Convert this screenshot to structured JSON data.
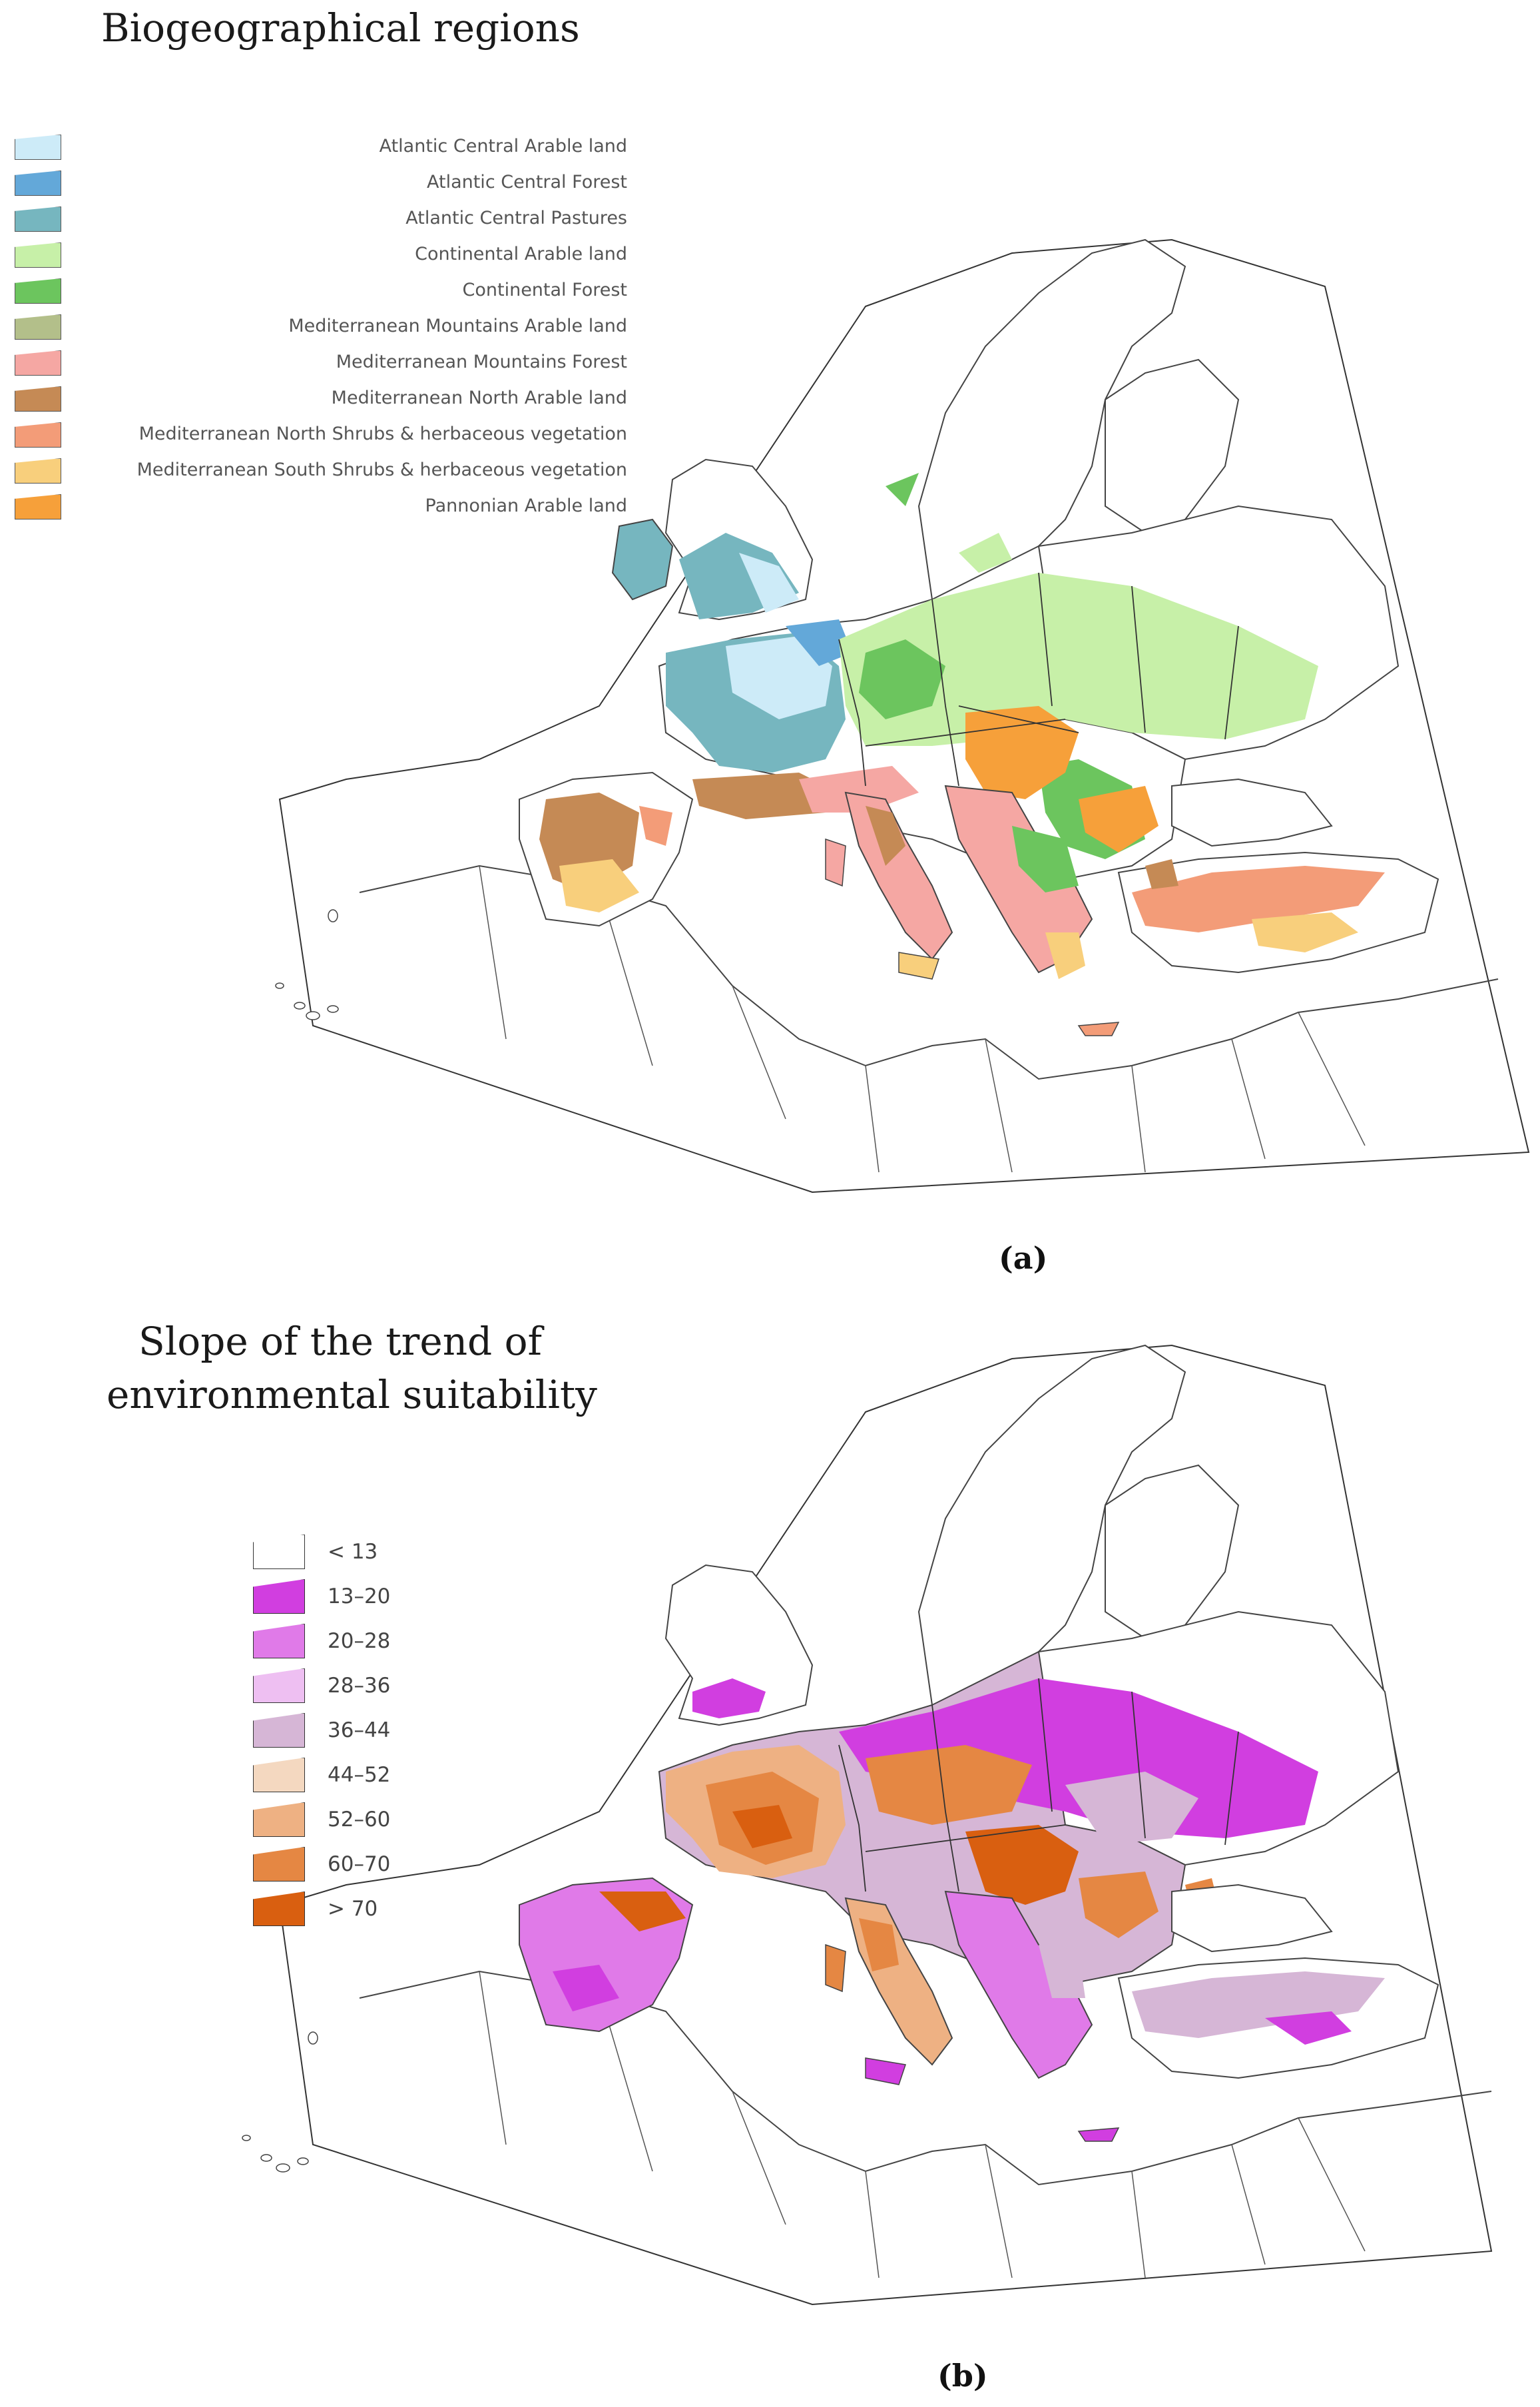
{
  "panel_a": {
    "title": "Biogeographical regions",
    "label": "(a)",
    "legend": [
      {
        "label": "Atlantic Central Arable land",
        "color": "#cdebf8"
      },
      {
        "label": "Atlantic Central Forest",
        "color": "#63a8d9"
      },
      {
        "label": "Atlantic Central Pastures",
        "color": "#76b6bf"
      },
      {
        "label": "Continental Arable land",
        "color": "#c7f0a8"
      },
      {
        "label": "Continental Forest",
        "color": "#6cc55e"
      },
      {
        "label": "Mediterranean Mountains Arable land",
        "color": "#b3bf8a"
      },
      {
        "label": "Mediterranean Mountains Forest",
        "color": "#f5a7a3"
      },
      {
        "label": "Mediterranean North Arable land",
        "color": "#c58a55"
      },
      {
        "label": "Mediterranean North Shrubs & herbaceous vegetation",
        "color": "#f39c78"
      },
      {
        "label": "Mediterranean South Shrubs & herbaceous vegetation",
        "color": "#f8cf7c"
      },
      {
        "label": "Pannonian Arable land",
        "color": "#f6a03a"
      }
    ]
  },
  "panel_b": {
    "title_line1": "Slope of the trend of",
    "title_line2": "environmental suitability",
    "label": "(b)",
    "legend": [
      {
        "label": "< 13",
        "color": "#ffffff"
      },
      {
        "label": "13–20",
        "color": "#d13ee0"
      },
      {
        "label": "20–28",
        "color": "#e07ae8"
      },
      {
        "label": "28–36",
        "color": "#eebff2"
      },
      {
        "label": "36–44",
        "color": "#d6b6d6"
      },
      {
        "label": "44–52",
        "color": "#f4d8c0"
      },
      {
        "label": "52–60",
        "color": "#eeb183"
      },
      {
        "label": "60–70",
        "color": "#e58743"
      },
      {
        "label": "> 70",
        "color": "#d95f10"
      }
    ]
  }
}
